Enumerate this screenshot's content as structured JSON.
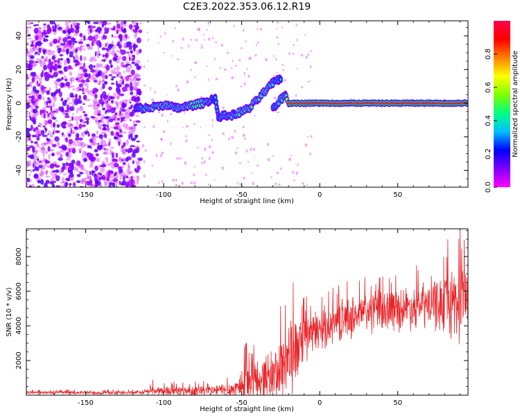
{
  "title": "C2E3.2022.353.06.12.R19",
  "chart_data": [
    {
      "type": "heatmap",
      "xlabel": "Height of straight line (km)",
      "ylabel": "Frequency (Hz)",
      "xlim": [
        -188,
        95
      ],
      "ylim": [
        -50,
        49
      ],
      "xticks": [
        -150,
        -100,
        -50,
        0,
        50
      ],
      "yticks": [
        -40,
        -20,
        0,
        20,
        40
      ],
      "colorbar": {
        "label": "Normalized spectral amplitude",
        "range": [
          0,
          1
        ],
        "ticks": [
          "0.0",
          "0.2",
          "0.4",
          "0.6",
          "0.8"
        ],
        "colors": [
          "#ff00ff",
          "#7f00ff",
          "#0000ff",
          "#00bfff",
          "#00ff80",
          "#7fff00",
          "#ffff00",
          "#ff8000",
          "#ff0000",
          "#ff004c"
        ]
      },
      "noise_region": {
        "x": [
          -188,
          -115
        ],
        "freq": [
          -50,
          49
        ]
      },
      "ridge": [
        {
          "x": -118,
          "f": -3,
          "amp": 0.3
        },
        {
          "x": -110,
          "f": -3,
          "amp": 0.45
        },
        {
          "x": -100,
          "f": -1,
          "amp": 0.45
        },
        {
          "x": -92,
          "f": -3,
          "amp": 0.4
        },
        {
          "x": -85,
          "f": -2,
          "amp": 0.45
        },
        {
          "x": -75,
          "f": 0,
          "amp": 0.45
        },
        {
          "x": -67,
          "f": 3,
          "amp": 0.3
        },
        {
          "x": -65,
          "f": -8,
          "amp": 0.35
        },
        {
          "x": -55,
          "f": -7,
          "amp": 0.4
        },
        {
          "x": -45,
          "f": -3,
          "amp": 0.45
        },
        {
          "x": -38,
          "f": 4,
          "amp": 0.45
        },
        {
          "x": -30,
          "f": 12,
          "amp": 0.4
        },
        {
          "x": -25,
          "f": 15,
          "amp": 0.3
        },
        {
          "x": -30,
          "f": -3,
          "amp": 0.35
        },
        {
          "x": -22,
          "f": 5,
          "amp": 0.4
        },
        {
          "x": -20,
          "f": 0,
          "amp": 0.8
        },
        {
          "x": 0,
          "f": 0,
          "amp": 0.9
        },
        {
          "x": 20,
          "f": 0,
          "amp": 0.9
        },
        {
          "x": 40,
          "f": 0,
          "amp": 0.9
        },
        {
          "x": 60,
          "f": 0,
          "amp": 0.9
        },
        {
          "x": 80,
          "f": 0,
          "amp": 0.9
        },
        {
          "x": 95,
          "f": 0,
          "amp": 0.9
        }
      ]
    },
    {
      "type": "line",
      "xlabel": "Height of straight line (km)",
      "ylabel": "SNR (10 * v/v)",
      "xlim": [
        -188,
        95
      ],
      "ylim": [
        0,
        9600
      ],
      "xticks": [
        -150,
        -100,
        -50,
        0,
        50
      ],
      "yticks": [
        2000,
        4000,
        6000,
        8000
      ],
      "series": [
        {
          "color": "#e8262a",
          "envelope": [
            {
              "x": -188,
              "base": 150,
              "amp": 120
            },
            {
              "x": -115,
              "base": 150,
              "amp": 120
            },
            {
              "x": -108,
              "base": 250,
              "amp": 300
            },
            {
              "x": -90,
              "base": 250,
              "amp": 350
            },
            {
              "x": -70,
              "base": 250,
              "amp": 400
            },
            {
              "x": -55,
              "base": 350,
              "amp": 550
            },
            {
              "x": -48,
              "base": 700,
              "amp": 1600
            },
            {
              "x": -38,
              "base": 900,
              "amp": 1500
            },
            {
              "x": -28,
              "base": 1200,
              "amp": 2000
            },
            {
              "x": -20,
              "base": 2200,
              "amp": 3200
            },
            {
              "x": -15,
              "base": 2500,
              "amp": 2200
            },
            {
              "x": -10,
              "base": 3200,
              "amp": 1600
            },
            {
              "x": 0,
              "base": 3800,
              "amp": 1400
            },
            {
              "x": 10,
              "base": 4200,
              "amp": 1400
            },
            {
              "x": 20,
              "base": 4500,
              "amp": 1400
            },
            {
              "x": 30,
              "base": 4800,
              "amp": 1500
            },
            {
              "x": 40,
              "base": 4900,
              "amp": 1500
            },
            {
              "x": 50,
              "base": 5000,
              "amp": 1500
            },
            {
              "x": 60,
              "base": 5100,
              "amp": 1500
            },
            {
              "x": 70,
              "base": 5200,
              "amp": 1700
            },
            {
              "x": 80,
              "base": 5300,
              "amp": 2000
            },
            {
              "x": 88,
              "base": 5400,
              "amp": 3000
            },
            {
              "x": 95,
              "base": 5400,
              "amp": 2200
            }
          ],
          "peaks": [
            {
              "x": -107,
              "y": 900
            },
            {
              "x": -47,
              "y": 3000
            },
            {
              "x": -22,
              "y": 5200
            },
            {
              "x": -17,
              "y": 6500
            },
            {
              "x": 33,
              "y": 6300
            },
            {
              "x": 82,
              "y": 9000
            },
            {
              "x": 90,
              "y": 9600
            }
          ]
        }
      ]
    }
  ]
}
